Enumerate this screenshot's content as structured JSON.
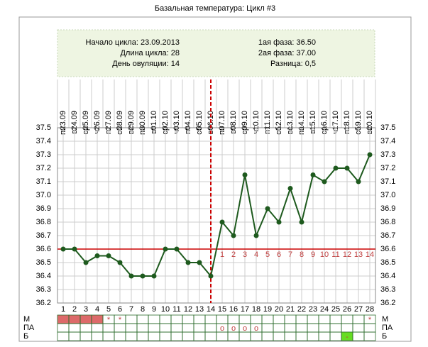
{
  "chart_data": {
    "type": "line",
    "title": "Базальная температура: Цикл #3",
    "info_left": [
      "Начало цикла: 23.09.2013",
      "Длина цикла: 28",
      "День овуляции: 14"
    ],
    "info_right": [
      "1ая фаза: 36.50",
      "2ая фаза: 37.00",
      "Разница: 0,5"
    ],
    "categories": [
      1,
      2,
      3,
      4,
      5,
      6,
      7,
      8,
      9,
      10,
      11,
      12,
      13,
      14,
      15,
      16,
      17,
      18,
      19,
      20,
      21,
      22,
      23,
      24,
      25,
      26,
      27,
      28
    ],
    "dates": [
      "23.09",
      "24.09",
      "25.09",
      "26.09",
      "27.09",
      "28.09",
      "29.09",
      "30.09",
      "01.10",
      "02.10",
      "03.10",
      "04.10",
      "05.10",
      "06.10",
      "07.10",
      "08.10",
      "09.10",
      "10.10",
      "11.10",
      "12.10",
      "13.10",
      "14.10",
      "15.10",
      "16.10",
      "17.10",
      "18.10",
      "19.10",
      "20.10"
    ],
    "weekdays": [
      "пн",
      "вт",
      "ср",
      "чт",
      "пт",
      "сб",
      "вс",
      "пн",
      "вт",
      "ср",
      "чт",
      "пт",
      "сб",
      "вс",
      "пн",
      "вт",
      "ср",
      "чт",
      "пт",
      "сб",
      "вс",
      "пн",
      "вт",
      "ср",
      "чт",
      "пт",
      "сб",
      "вс"
    ],
    "series": [
      {
        "name": "Температура",
        "color": "#1e5a1e",
        "values": [
          36.6,
          36.6,
          36.5,
          36.55,
          36.55,
          36.5,
          36.4,
          36.4,
          36.4,
          36.6,
          36.6,
          36.5,
          36.5,
          36.4,
          36.8,
          36.7,
          37.15,
          36.7,
          36.9,
          36.8,
          37.05,
          36.8,
          37.15,
          37.1,
          37.2,
          37.2,
          37.1,
          37.3
        ]
      }
    ],
    "ylim": [
      36.2,
      37.5
    ],
    "yticks": [
      36.2,
      36.3,
      36.4,
      36.5,
      36.6,
      36.7,
      36.8,
      36.9,
      {
        "value": 37,
        "label": "37.0"
      },
      37.1,
      37.2,
      37.3,
      37.4,
      37.5
    ],
    "grid": true,
    "cover_line": 36.6,
    "cover_line_color": "#cc0000",
    "ovulation_day": 14,
    "phase2_day_labels": [
      1,
      2,
      3,
      4,
      5,
      6,
      7,
      8,
      9,
      10,
      11,
      12,
      13,
      14
    ],
    "rows": [
      {
        "label": "М",
        "fill_days": [
          1,
          2,
          3,
          4
        ],
        "fill_color": "#dd6a6a",
        "symbols": [
          {
            "day": 5,
            "text": "*"
          },
          {
            "day": 6,
            "text": "*"
          },
          {
            "day": 28,
            "text": "*"
          }
        ]
      },
      {
        "label": "ПА",
        "fill_days": [],
        "fill_color": "#dd6a6a",
        "symbols": [
          {
            "day": 15,
            "text": "o"
          },
          {
            "day": 16,
            "text": "o"
          },
          {
            "day": 17,
            "text": "o"
          },
          {
            "day": 18,
            "text": "o"
          }
        ]
      },
      {
        "label": "Б",
        "fill_days": [
          26
        ],
        "fill_color": "#66dd22",
        "symbols": [
          {
            "day": 26,
            "text": "-"
          }
        ]
      }
    ]
  }
}
